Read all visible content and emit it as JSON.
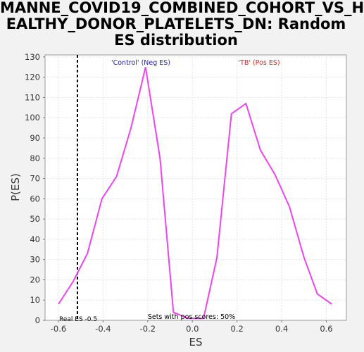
{
  "chart_data": {
    "type": "line",
    "title": [
      "MANNE_COVID19_COMBINED_COHORT_VS_H",
      "EALTHY_DONOR_PLATELETS_DN: Random",
      "ES distribution"
    ],
    "xlabel": "ES",
    "ylabel": "P(ES)",
    "xlim": [
      -0.66,
      0.69
    ],
    "ylim": [
      0,
      131
    ],
    "xticks": [
      -0.6,
      -0.4,
      -0.2,
      0.0,
      0.2,
      0.4,
      0.6
    ],
    "xtick_labels": [
      "-0.6",
      "-0.4",
      "-0.2",
      "0.0",
      "0.2",
      "0.4",
      "0.6"
    ],
    "yticks": [
      0,
      10,
      20,
      30,
      40,
      50,
      60,
      70,
      80,
      90,
      100,
      110,
      120,
      130
    ],
    "ytick_labels": [
      "0",
      "10",
      "20",
      "30",
      "40",
      "50",
      "60",
      "70",
      "80",
      "90",
      "100",
      "110",
      "120",
      "130"
    ],
    "grid": true,
    "series": [
      {
        "color": "#ee44ee",
        "x": [
          -0.6,
          -0.535,
          -0.47,
          -0.405,
          -0.34,
          -0.275,
          -0.21,
          -0.145,
          -0.085,
          -0.02,
          0.05,
          0.11,
          0.175,
          0.24,
          0.305,
          0.37,
          0.435,
          0.5,
          0.56,
          0.625
        ],
        "y": [
          8,
          19,
          33,
          60,
          71,
          95,
          125,
          80,
          4,
          1,
          1,
          31,
          102,
          107,
          84,
          72,
          56,
          31,
          13,
          8
        ]
      }
    ],
    "reference_line": {
      "x": -0.515,
      "label": "Real ES -0.5"
    },
    "annotations": {
      "neg": "'Control' (Neg ES)",
      "neg_color": "#2222bb",
      "pos": "'TB' (Pos ES)",
      "pos_color": "#dd2222",
      "footer": "Sets with pos scores: 50%"
    }
  }
}
